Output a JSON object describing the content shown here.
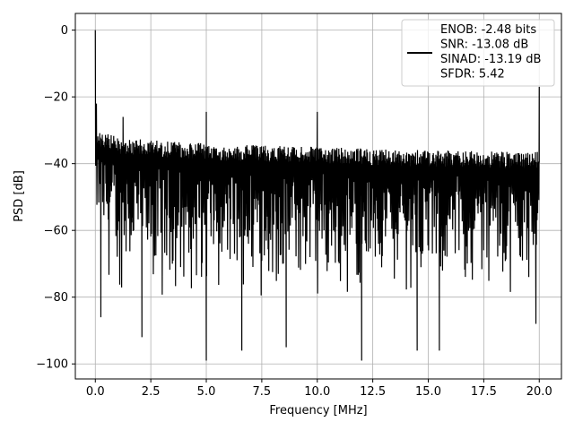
{
  "chart_data": {
    "type": "line",
    "xlabel": "Frequency [MHz]",
    "ylabel": "PSD [dB]",
    "xlim": [
      -0.9,
      21.0
    ],
    "ylim": [
      -104.5,
      5.0
    ],
    "xticks": [
      0.0,
      2.5,
      5.0,
      7.5,
      10.0,
      12.5,
      15.0,
      17.5,
      20.0
    ],
    "xtick_labels": [
      "0.0",
      "2.5",
      "5.0",
      "7.5",
      "10.0",
      "12.5",
      "15.0",
      "17.5",
      "20.0"
    ],
    "yticks": [
      0,
      -20,
      -40,
      -60,
      -80,
      -100
    ],
    "ytick_labels": [
      "0",
      "−20",
      "−40",
      "−60",
      "−80",
      "−100"
    ],
    "grid": true,
    "legend_position": "top-right",
    "legend_lines": [
      "ENOB: -2.48 bits",
      "SNR: -13.08 dB",
      "SINAD: -13.19 dB",
      "SFDR: 5.42"
    ],
    "series": [
      {
        "color": "#000000",
        "x_range": [
          0.0,
          20.0
        ],
        "noise_top_envelope": [
          [
            0.05,
            -30
          ],
          [
            1.0,
            -32
          ],
          [
            3.0,
            -33
          ],
          [
            5.0,
            -34
          ],
          [
            10.0,
            -35
          ],
          [
            15.0,
            -36
          ],
          [
            20.0,
            -36.5
          ]
        ],
        "noise_bottom_envelope": [
          [
            0.05,
            -64
          ],
          [
            0.5,
            -75
          ],
          [
            1.0,
            -80
          ],
          [
            3.0,
            -82
          ],
          [
            5.0,
            -80
          ],
          [
            10.0,
            -81
          ],
          [
            15.0,
            -80
          ],
          [
            20.0,
            -80
          ]
        ],
        "peaks": [
          {
            "x": 0.0,
            "y": 0
          },
          {
            "x": 0.05,
            "y": -22
          },
          {
            "x": 1.25,
            "y": -26
          },
          {
            "x": 5.0,
            "y": -24.5
          },
          {
            "x": 10.0,
            "y": -24.5
          },
          {
            "x": 20.0,
            "y": -17
          }
        ],
        "dips": [
          {
            "x": 5.0,
            "y": -99
          },
          {
            "x": 12.0,
            "y": -99
          },
          {
            "x": 14.5,
            "y": -96
          },
          {
            "x": 6.6,
            "y": -96
          },
          {
            "x": 8.6,
            "y": -95
          },
          {
            "x": 15.5,
            "y": -96
          },
          {
            "x": 2.1,
            "y": -92
          },
          {
            "x": 0.25,
            "y": -86
          },
          {
            "x": 19.85,
            "y": -88
          }
        ]
      }
    ]
  }
}
